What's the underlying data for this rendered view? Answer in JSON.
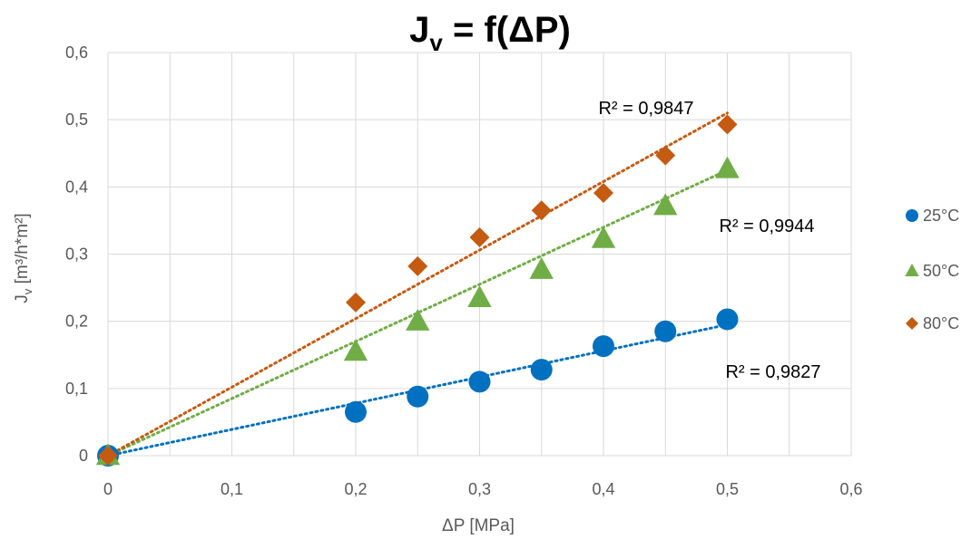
{
  "chart_data": {
    "type": "scatter",
    "title": "J",
    "title_subscript": "v",
    "title_rest": " = f(ΔP)",
    "xlabel": "ΔP [MPa]",
    "ylabel_main": "J",
    "ylabel_sub": "v",
    "ylabel_rest": " [m³/h*m²]",
    "xlim": [
      0,
      0.6
    ],
    "ylim": [
      0,
      0.6
    ],
    "x_ticks": [
      0,
      0.1,
      0.2,
      0.3,
      0.4,
      0.5,
      0.6
    ],
    "x_tick_labels": [
      "0",
      "0,1",
      "0,2",
      "0,3",
      "0,4",
      "0,5",
      "0,6"
    ],
    "y_ticks": [
      0,
      0.1,
      0.2,
      0.3,
      0.4,
      0.5,
      0.6
    ],
    "y_tick_labels": [
      "0",
      "0,1",
      "0,2",
      "0,3",
      "0,4",
      "0,5",
      "0,6"
    ],
    "grid": true,
    "legend_position": "right",
    "series": [
      {
        "name": "25°C",
        "marker": "circle",
        "color": "#0070c0",
        "x": [
          0,
          0.2,
          0.25,
          0.3,
          0.35,
          0.4,
          0.45,
          0.5
        ],
        "y": [
          0,
          0.065,
          0.088,
          0.11,
          0.128,
          0.163,
          0.185,
          0.203
        ],
        "trendline_slope": 0.39,
        "r2_label": "R² = 0,9827"
      },
      {
        "name": "50°C",
        "marker": "triangle",
        "color": "#70ad47",
        "x": [
          0,
          0.2,
          0.25,
          0.3,
          0.35,
          0.4,
          0.45,
          0.5
        ],
        "y": [
          0,
          0.155,
          0.2,
          0.235,
          0.277,
          0.323,
          0.372,
          0.427
        ],
        "trendline_slope": 0.85,
        "r2_label": "R² = 0,9944"
      },
      {
        "name": "80°C",
        "marker": "diamond",
        "color": "#c55a11",
        "x": [
          0,
          0.2,
          0.25,
          0.3,
          0.35,
          0.4,
          0.45,
          0.5
        ],
        "y": [
          0,
          0.228,
          0.282,
          0.325,
          0.365,
          0.391,
          0.447,
          0.493
        ],
        "trendline_slope": 1.02,
        "r2_label": "R² = 0,9847"
      }
    ]
  }
}
